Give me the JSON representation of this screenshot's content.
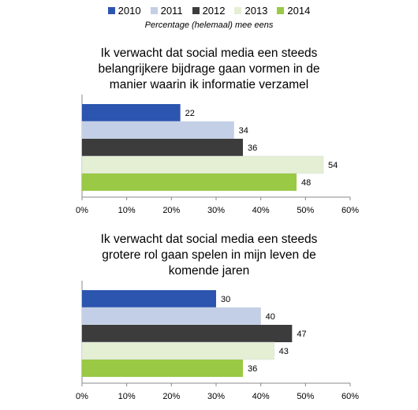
{
  "legend": [
    {
      "label": "2010",
      "color": "#2c55b0"
    },
    {
      "label": "2011",
      "color": "#c3cfe6"
    },
    {
      "label": "2012",
      "color": "#3c3c3c"
    },
    {
      "label": "2013",
      "color": "#e4efd3"
    },
    {
      "label": "2014",
      "color": "#99c945"
    }
  ],
  "subtitle": "Percentage (helemaal) mee eens",
  "chart_data": [
    {
      "type": "bar",
      "orientation": "horizontal",
      "title_lines": [
        "Ik verwacht dat social media een steeds",
        "belangrijkere bijdrage gaan vormen in de",
        "manier waarin ik informatie verzamel"
      ],
      "categories": [
        "2010",
        "2011",
        "2012",
        "2013",
        "2014"
      ],
      "values": [
        22,
        34,
        36,
        54,
        48
      ],
      "data_labels": [
        "22",
        "34",
        "36",
        "54",
        "48"
      ],
      "xlim": [
        0,
        60
      ],
      "x_ticks": [
        "0%",
        "10%",
        "20%",
        "30%",
        "40%",
        "50%",
        "60%"
      ],
      "grid": false
    },
    {
      "type": "bar",
      "orientation": "horizontal",
      "title_lines": [
        "Ik verwacht dat social media een steeds",
        "grotere rol gaan spelen in mijn leven de",
        "komende jaren"
      ],
      "categories": [
        "2010",
        "2011",
        "2012",
        "2013",
        "2014"
      ],
      "values": [
        30,
        40,
        47,
        43,
        36
      ],
      "data_labels": [
        "30",
        "40",
        "47",
        "43",
        "36"
      ],
      "xlim": [
        0,
        60
      ],
      "x_ticks": [
        "0%",
        "10%",
        "20%",
        "30%",
        "40%",
        "50%",
        "60%"
      ],
      "grid": false
    }
  ]
}
